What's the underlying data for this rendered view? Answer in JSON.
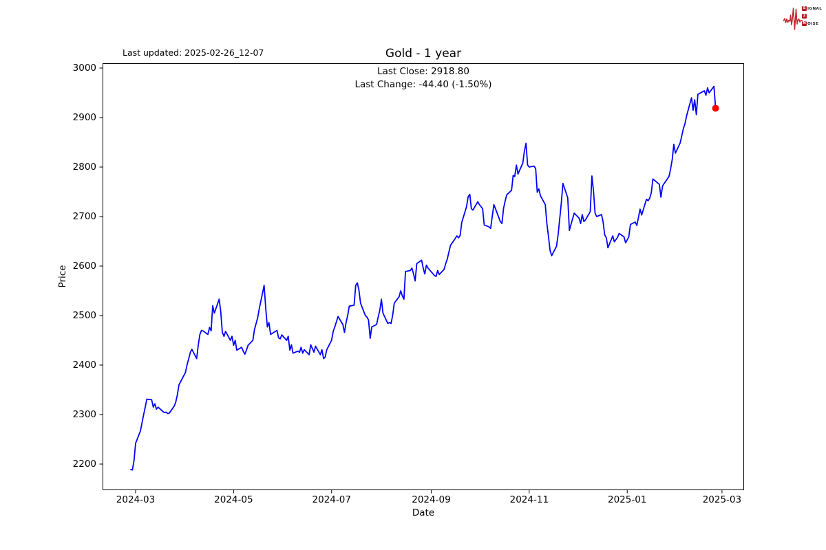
{
  "header": {
    "last_updated": "Last updated: 2025-02-26_12-07"
  },
  "logo": {
    "name": "Signal 2 Noise",
    "row1_initial": "S",
    "row1_rest": "IGNAL",
    "row2_initial": "2",
    "row3_initial": "N",
    "row3_rest": "OISE",
    "accent_color": "#b5191f",
    "wave_color": "#c0252b",
    "text_color": "#2b2b2b"
  },
  "chart_data": {
    "type": "line",
    "title": "Gold - 1 year",
    "annotations": {
      "last_close": "Last Close: 2918.80",
      "last_change": "Last Change: -44.40 (-1.50%)"
    },
    "xlabel": "Date",
    "ylabel": "Price",
    "line_color": "#0000ff",
    "marker_color": "#ff0000",
    "axis_color": "#000000",
    "grid": false,
    "ylim": [
      2150,
      3010
    ],
    "y_ticks": [
      {
        "label": "2200",
        "value": 2200
      },
      {
        "label": "2300",
        "value": 2300
      },
      {
        "label": "2400",
        "value": 2400
      },
      {
        "label": "2500",
        "value": 2500
      },
      {
        "label": "2600",
        "value": 2600
      },
      {
        "label": "2700",
        "value": 2700
      },
      {
        "label": "2800",
        "value": 2800
      },
      {
        "label": "2900",
        "value": 2900
      },
      {
        "label": "3000",
        "value": 3000
      }
    ],
    "x_ticks": [
      {
        "label": "2024-03",
        "date": "2024-03-01"
      },
      {
        "label": "2024-05",
        "date": "2024-05-01"
      },
      {
        "label": "2024-07",
        "date": "2024-07-01"
      },
      {
        "label": "2024-09",
        "date": "2024-09-01"
      },
      {
        "label": "2024-11",
        "date": "2024-11-01"
      },
      {
        "label": "2025-01",
        "date": "2025-01-01"
      },
      {
        "label": "2025-03",
        "date": "2025-03-01"
      }
    ],
    "last_point": {
      "date": "2025-02-25",
      "price": 2918.8
    },
    "series": [
      {
        "name": "Gold",
        "points": [
          [
            "2024-02-27",
            2189
          ],
          [
            "2024-02-28",
            2188
          ],
          [
            "2024-02-29",
            2207
          ],
          [
            "2024-03-01",
            2242
          ],
          [
            "2024-03-04",
            2267
          ],
          [
            "2024-03-05",
            2283
          ],
          [
            "2024-03-06",
            2300
          ],
          [
            "2024-03-07",
            2315
          ],
          [
            "2024-03-08",
            2331
          ],
          [
            "2024-03-11",
            2330
          ],
          [
            "2024-03-12",
            2315
          ],
          [
            "2024-03-13",
            2322
          ],
          [
            "2024-03-14",
            2311
          ],
          [
            "2024-03-15",
            2315
          ],
          [
            "2024-03-18",
            2306
          ],
          [
            "2024-03-19",
            2304
          ],
          [
            "2024-03-20",
            2305
          ],
          [
            "2024-03-21",
            2302
          ],
          [
            "2024-03-22",
            2303
          ],
          [
            "2024-03-25",
            2317
          ],
          [
            "2024-03-26",
            2325
          ],
          [
            "2024-03-27",
            2340
          ],
          [
            "2024-03-28",
            2360
          ],
          [
            "2024-04-01",
            2385
          ],
          [
            "2024-04-02",
            2400
          ],
          [
            "2024-04-03",
            2412
          ],
          [
            "2024-04-04",
            2425
          ],
          [
            "2024-04-05",
            2432
          ],
          [
            "2024-04-08",
            2413
          ],
          [
            "2024-04-09",
            2440
          ],
          [
            "2024-04-10",
            2462
          ],
          [
            "2024-04-11",
            2470
          ],
          [
            "2024-04-12",
            2469
          ],
          [
            "2024-04-15",
            2462
          ],
          [
            "2024-04-16",
            2476
          ],
          [
            "2024-04-17",
            2469
          ],
          [
            "2024-04-18",
            2520
          ],
          [
            "2024-04-19",
            2505
          ],
          [
            "2024-04-22",
            2533
          ],
          [
            "2024-04-23",
            2508
          ],
          [
            "2024-04-24",
            2466
          ],
          [
            "2024-04-25",
            2458
          ],
          [
            "2024-04-26",
            2468
          ],
          [
            "2024-04-29",
            2450
          ],
          [
            "2024-04-30",
            2458
          ],
          [
            "2024-05-01",
            2440
          ],
          [
            "2024-05-02",
            2450
          ],
          [
            "2024-05-03",
            2430
          ],
          [
            "2024-05-06",
            2436
          ],
          [
            "2024-05-07",
            2428
          ],
          [
            "2024-05-08",
            2422
          ],
          [
            "2024-05-09",
            2430
          ],
          [
            "2024-05-10",
            2440
          ],
          [
            "2024-05-13",
            2450
          ],
          [
            "2024-05-14",
            2472
          ],
          [
            "2024-05-15",
            2484
          ],
          [
            "2024-05-16",
            2496
          ],
          [
            "2024-05-17",
            2514
          ],
          [
            "2024-05-20",
            2561
          ],
          [
            "2024-05-21",
            2514
          ],
          [
            "2024-05-22",
            2477
          ],
          [
            "2024-05-23",
            2486
          ],
          [
            "2024-05-24",
            2462
          ],
          [
            "2024-05-28",
            2470
          ],
          [
            "2024-05-29",
            2455
          ],
          [
            "2024-05-30",
            2453
          ],
          [
            "2024-05-31",
            2461
          ],
          [
            "2024-06-03",
            2450
          ],
          [
            "2024-06-04",
            2458
          ],
          [
            "2024-06-05",
            2430
          ],
          [
            "2024-06-06",
            2441
          ],
          [
            "2024-06-07",
            2424
          ],
          [
            "2024-06-10",
            2428
          ],
          [
            "2024-06-11",
            2426
          ],
          [
            "2024-06-12",
            2436
          ],
          [
            "2024-06-13",
            2424
          ],
          [
            "2024-06-14",
            2431
          ],
          [
            "2024-06-17",
            2421
          ],
          [
            "2024-06-18",
            2441
          ],
          [
            "2024-06-20",
            2426
          ],
          [
            "2024-06-21",
            2438
          ],
          [
            "2024-06-24",
            2421
          ],
          [
            "2024-06-25",
            2431
          ],
          [
            "2024-06-26",
            2413
          ],
          [
            "2024-06-27",
            2416
          ],
          [
            "2024-06-28",
            2431
          ],
          [
            "2024-07-01",
            2450
          ],
          [
            "2024-07-02",
            2468
          ],
          [
            "2024-07-03",
            2477
          ],
          [
            "2024-07-05",
            2498
          ],
          [
            "2024-07-08",
            2482
          ],
          [
            "2024-07-09",
            2466
          ],
          [
            "2024-07-10",
            2486
          ],
          [
            "2024-07-11",
            2500
          ],
          [
            "2024-07-12",
            2519
          ],
          [
            "2024-07-15",
            2521
          ],
          [
            "2024-07-16",
            2561
          ],
          [
            "2024-07-17",
            2566
          ],
          [
            "2024-07-18",
            2552
          ],
          [
            "2024-07-19",
            2525
          ],
          [
            "2024-07-22",
            2500
          ],
          [
            "2024-07-23",
            2497
          ],
          [
            "2024-07-24",
            2491
          ],
          [
            "2024-07-25",
            2454
          ],
          [
            "2024-07-26",
            2477
          ],
          [
            "2024-07-29",
            2482
          ],
          [
            "2024-07-30",
            2497
          ],
          [
            "2024-07-31",
            2511
          ],
          [
            "2024-08-01",
            2533
          ],
          [
            "2024-08-02",
            2505
          ],
          [
            "2024-08-05",
            2484
          ],
          [
            "2024-08-06",
            2486
          ],
          [
            "2024-08-07",
            2484
          ],
          [
            "2024-08-08",
            2500
          ],
          [
            "2024-08-09",
            2525
          ],
          [
            "2024-08-12",
            2538
          ],
          [
            "2024-08-13",
            2550
          ],
          [
            "2024-08-14",
            2540
          ],
          [
            "2024-08-15",
            2533
          ],
          [
            "2024-08-16",
            2589
          ],
          [
            "2024-08-19",
            2591
          ],
          [
            "2024-08-20",
            2596
          ],
          [
            "2024-08-21",
            2584
          ],
          [
            "2024-08-22",
            2570
          ],
          [
            "2024-08-23",
            2605
          ],
          [
            "2024-08-26",
            2612
          ],
          [
            "2024-08-27",
            2596
          ],
          [
            "2024-08-28",
            2584
          ],
          [
            "2024-08-29",
            2602
          ],
          [
            "2024-08-30",
            2596
          ],
          [
            "2024-09-03",
            2581
          ],
          [
            "2024-09-04",
            2579
          ],
          [
            "2024-09-05",
            2591
          ],
          [
            "2024-09-06",
            2583
          ],
          [
            "2024-09-09",
            2593
          ],
          [
            "2024-09-10",
            2605
          ],
          [
            "2024-09-11",
            2614
          ],
          [
            "2024-09-12",
            2628
          ],
          [
            "2024-09-13",
            2642
          ],
          [
            "2024-09-16",
            2656
          ],
          [
            "2024-09-17",
            2661
          ],
          [
            "2024-09-18",
            2657
          ],
          [
            "2024-09-19",
            2662
          ],
          [
            "2024-09-20",
            2688
          ],
          [
            "2024-09-23",
            2720
          ],
          [
            "2024-09-24",
            2740
          ],
          [
            "2024-09-25",
            2745
          ],
          [
            "2024-09-26",
            2716
          ],
          [
            "2024-09-27",
            2713
          ],
          [
            "2024-09-30",
            2730
          ],
          [
            "2024-10-01",
            2724
          ],
          [
            "2024-10-02",
            2720
          ],
          [
            "2024-10-03",
            2716
          ],
          [
            "2024-10-04",
            2683
          ],
          [
            "2024-10-07",
            2679
          ],
          [
            "2024-10-08",
            2676
          ],
          [
            "2024-10-09",
            2700
          ],
          [
            "2024-10-10",
            2724
          ],
          [
            "2024-10-11",
            2716
          ],
          [
            "2024-10-14",
            2690
          ],
          [
            "2024-10-15",
            2686
          ],
          [
            "2024-10-16",
            2716
          ],
          [
            "2024-10-17",
            2731
          ],
          [
            "2024-10-18",
            2744
          ],
          [
            "2024-10-21",
            2753
          ],
          [
            "2024-10-22",
            2783
          ],
          [
            "2024-10-23",
            2781
          ],
          [
            "2024-10-24",
            2804
          ],
          [
            "2024-10-25",
            2786
          ],
          [
            "2024-10-28",
            2808
          ],
          [
            "2024-10-29",
            2832
          ],
          [
            "2024-10-30",
            2848
          ],
          [
            "2024-10-31",
            2804
          ],
          [
            "2024-11-01",
            2800
          ],
          [
            "2024-11-04",
            2802
          ],
          [
            "2024-11-05",
            2797
          ],
          [
            "2024-11-06",
            2749
          ],
          [
            "2024-11-07",
            2756
          ],
          [
            "2024-11-08",
            2742
          ],
          [
            "2024-11-11",
            2724
          ],
          [
            "2024-11-12",
            2686
          ],
          [
            "2024-11-13",
            2660
          ],
          [
            "2024-11-14",
            2631
          ],
          [
            "2024-11-15",
            2621
          ],
          [
            "2024-11-18",
            2640
          ],
          [
            "2024-11-19",
            2663
          ],
          [
            "2024-11-20",
            2696
          ],
          [
            "2024-11-21",
            2728
          ],
          [
            "2024-11-22",
            2767
          ],
          [
            "2024-11-25",
            2738
          ],
          [
            "2024-11-26",
            2672
          ],
          [
            "2024-11-27",
            2684
          ],
          [
            "2024-11-29",
            2707
          ],
          [
            "2024-12-02",
            2697
          ],
          [
            "2024-12-03",
            2686
          ],
          [
            "2024-12-04",
            2704
          ],
          [
            "2024-12-05",
            2690
          ],
          [
            "2024-12-06",
            2693
          ],
          [
            "2024-12-09",
            2710
          ],
          [
            "2024-12-10",
            2782
          ],
          [
            "2024-12-11",
            2752
          ],
          [
            "2024-12-12",
            2707
          ],
          [
            "2024-12-13",
            2700
          ],
          [
            "2024-12-16",
            2704
          ],
          [
            "2024-12-17",
            2689
          ],
          [
            "2024-12-18",
            2663
          ],
          [
            "2024-12-19",
            2657
          ],
          [
            "2024-12-20",
            2637
          ],
          [
            "2024-12-23",
            2661
          ],
          [
            "2024-12-24",
            2649
          ],
          [
            "2024-12-26",
            2658
          ],
          [
            "2024-12-27",
            2666
          ],
          [
            "2024-12-30",
            2659
          ],
          [
            "2024-12-31",
            2647
          ],
          [
            "2025-01-02",
            2659
          ],
          [
            "2025-01-03",
            2684
          ],
          [
            "2025-01-06",
            2689
          ],
          [
            "2025-01-07",
            2682
          ],
          [
            "2025-01-08",
            2698
          ],
          [
            "2025-01-09",
            2715
          ],
          [
            "2025-01-10",
            2703
          ],
          [
            "2025-01-13",
            2735
          ],
          [
            "2025-01-14",
            2732
          ],
          [
            "2025-01-15",
            2737
          ],
          [
            "2025-01-16",
            2748
          ],
          [
            "2025-01-17",
            2776
          ],
          [
            "2025-01-21",
            2765
          ],
          [
            "2025-01-22",
            2739
          ],
          [
            "2025-01-23",
            2762
          ],
          [
            "2025-01-24",
            2767
          ],
          [
            "2025-01-27",
            2781
          ],
          [
            "2025-01-28",
            2796
          ],
          [
            "2025-01-29",
            2815
          ],
          [
            "2025-01-30",
            2846
          ],
          [
            "2025-01-31",
            2828
          ],
          [
            "2025-02-03",
            2849
          ],
          [
            "2025-02-04",
            2864
          ],
          [
            "2025-02-05",
            2878
          ],
          [
            "2025-02-06",
            2888
          ],
          [
            "2025-02-07",
            2904
          ],
          [
            "2025-02-10",
            2940
          ],
          [
            "2025-02-11",
            2915
          ],
          [
            "2025-02-12",
            2936
          ],
          [
            "2025-02-13",
            2906
          ],
          [
            "2025-02-14",
            2947
          ],
          [
            "2025-02-18",
            2954
          ],
          [
            "2025-02-19",
            2945
          ],
          [
            "2025-02-20",
            2960
          ],
          [
            "2025-02-21",
            2950
          ],
          [
            "2025-02-24",
            2963
          ],
          [
            "2025-02-25",
            2918.8
          ]
        ]
      }
    ]
  }
}
